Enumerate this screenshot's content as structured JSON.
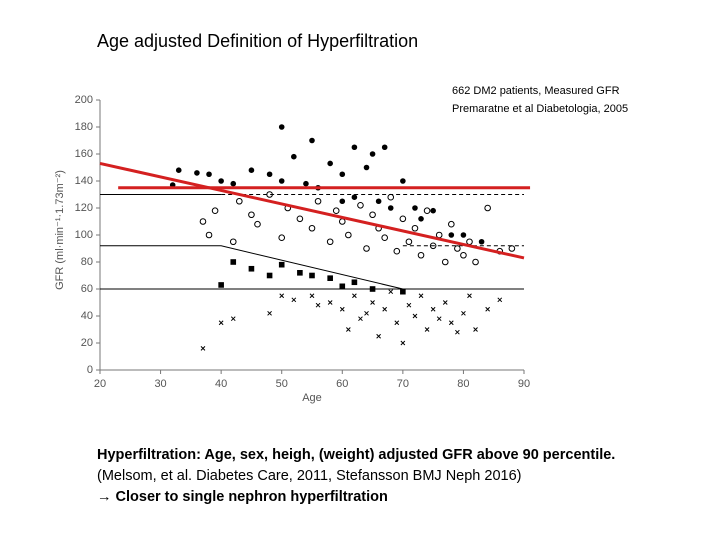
{
  "header": {
    "title": "Age adjusted Definition of Hyperfiltration"
  },
  "chart_data": {
    "type": "scatter",
    "notes": [
      "662 DM2 patients, Measured GFR",
      "Premaratne et al Diabetologia, 2005"
    ],
    "x_label": "Age",
    "y_label": "GFR (ml·min⁻¹·1.73m⁻²)",
    "xlim": [
      20,
      90
    ],
    "xticks": [
      20,
      30,
      40,
      50,
      60,
      70,
      80,
      90
    ],
    "ylim": [
      0,
      200
    ],
    "yticks": [
      0,
      20,
      40,
      60,
      80,
      100,
      120,
      140,
      160,
      180,
      200
    ],
    "series": [
      {
        "style": "marker",
        "marker": "filled-circle",
        "color": "#000000",
        "x": [
          32,
          33,
          36,
          38,
          40,
          42,
          45,
          48,
          50,
          50,
          52,
          54,
          55,
          56,
          58,
          60,
          60,
          62,
          62,
          64,
          65,
          66,
          67,
          68,
          70,
          72,
          73,
          75,
          78,
          80,
          83
        ],
        "values": [
          137,
          148,
          146,
          145,
          140,
          138,
          148,
          145,
          180,
          140,
          158,
          138,
          170,
          135,
          153,
          145,
          125,
          165,
          128,
          150,
          160,
          125,
          165,
          120,
          140,
          120,
          112,
          118,
          100,
          100,
          95
        ]
      },
      {
        "style": "marker",
        "marker": "open-circle",
        "color": "#000000",
        "x": [
          37,
          38,
          39,
          42,
          43,
          45,
          46,
          48,
          50,
          51,
          53,
          55,
          56,
          58,
          59,
          60,
          61,
          63,
          64,
          65,
          66,
          67,
          68,
          69,
          70,
          71,
          72,
          73,
          74,
          75,
          76,
          77,
          78,
          79,
          80,
          81,
          82,
          84,
          86,
          88
        ],
        "values": [
          110,
          100,
          118,
          95,
          125,
          115,
          108,
          130,
          98,
          120,
          112,
          105,
          125,
          95,
          118,
          110,
          100,
          122,
          90,
          115,
          105,
          98,
          128,
          88,
          112,
          95,
          105,
          85,
          118,
          92,
          100,
          80,
          108,
          90,
          85,
          95,
          80,
          120,
          88,
          90
        ]
      },
      {
        "style": "marker",
        "marker": "square",
        "color": "#000000",
        "x": [
          40,
          42,
          45,
          48,
          50,
          53,
          55,
          58,
          60,
          62,
          65,
          70
        ],
        "values": [
          63,
          80,
          75,
          70,
          78,
          72,
          70,
          68,
          62,
          65,
          60,
          58
        ]
      },
      {
        "style": "marker",
        "marker": "cross",
        "color": "#000000",
        "x": [
          37,
          40,
          42,
          48,
          50,
          52,
          55,
          56,
          58,
          60,
          61,
          62,
          63,
          64,
          65,
          66,
          67,
          68,
          69,
          70,
          71,
          72,
          73,
          74,
          75,
          76,
          77,
          78,
          79,
          80,
          81,
          82,
          84,
          86
        ],
        "values": [
          16,
          35,
          38,
          42,
          55,
          52,
          55,
          48,
          50,
          45,
          30,
          55,
          38,
          42,
          50,
          25,
          45,
          58,
          35,
          20,
          48,
          40,
          55,
          30,
          45,
          38,
          50,
          35,
          28,
          42,
          55,
          30,
          45,
          52
        ]
      },
      {
        "style": "line",
        "color": "#000000",
        "x": [
          20,
          40
        ],
        "values": [
          130,
          130
        ]
      },
      {
        "style": "line",
        "dashed": true,
        "color": "#000000",
        "x": [
          40,
          90
        ],
        "values": [
          130,
          130
        ]
      },
      {
        "style": "line",
        "color": "#000000",
        "x": [
          20,
          40,
          70
        ],
        "values": [
          92,
          92,
          60
        ]
      },
      {
        "style": "line",
        "dashed": true,
        "color": "#000000",
        "x": [
          70,
          90
        ],
        "values": [
          92,
          92
        ]
      },
      {
        "style": "line",
        "color": "#000000",
        "x": [
          20,
          90
        ],
        "values": [
          60,
          60
        ]
      },
      {
        "style": "line",
        "width": 3,
        "color": "#d42020",
        "x": [
          23,
          91
        ],
        "values": [
          135,
          135
        ]
      },
      {
        "style": "line",
        "width": 3,
        "color": "#d42020",
        "x": [
          20,
          90
        ],
        "values": [
          153,
          83
        ]
      }
    ]
  },
  "footer": {
    "lines": [
      "Hyperfiltration: Age, sex, heigh, (weight) adjusted GFR above 90 percentile.",
      "(Melsom, et al. Diabetes Care, 2011, Stefansson BMJ Neph 2016)",
      "→ Closer to single nephron hyperfiltration"
    ]
  }
}
